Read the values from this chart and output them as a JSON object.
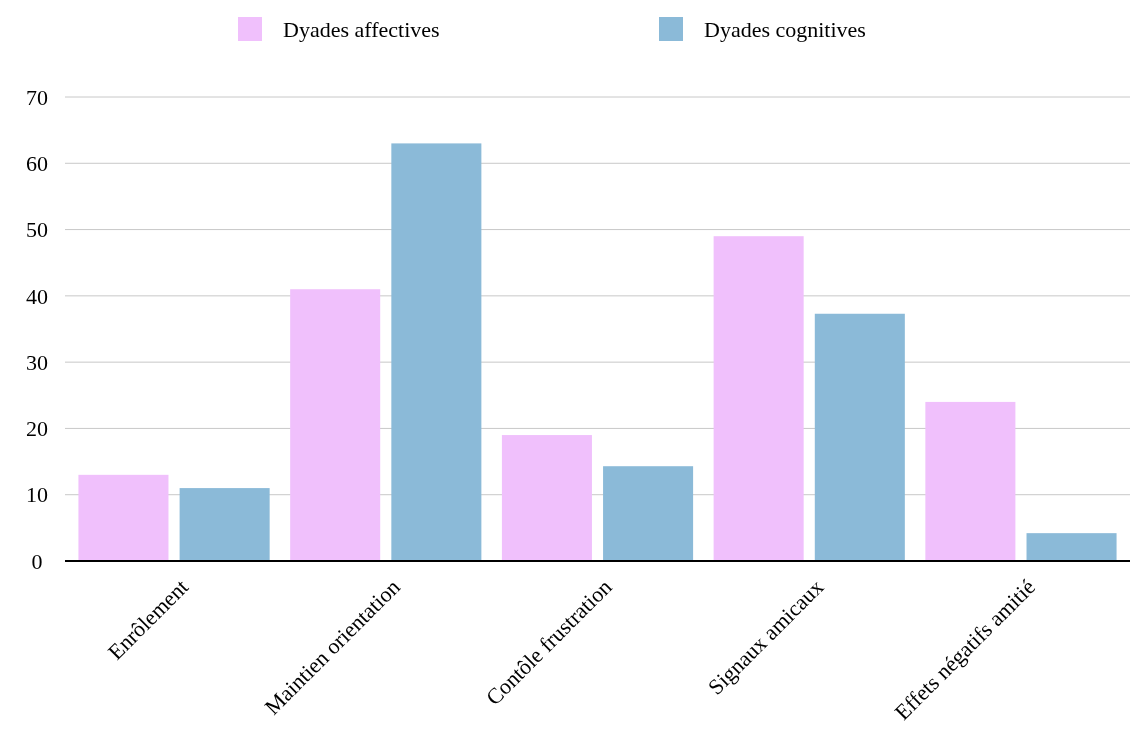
{
  "chart_data": {
    "type": "bar",
    "categories": [
      "Enrôlement",
      "Maintien orientation",
      "Contôle frustration",
      "Signaux amicaux",
      "Effets négatifs amitié"
    ],
    "series": [
      {
        "name": "Dyades affectives",
        "color": "#f0c0fc",
        "values": [
          13,
          41,
          19,
          49,
          24
        ]
      },
      {
        "name": "Dyades cognitives",
        "color": "#8bbad8",
        "values": [
          11,
          63,
          14.3,
          37.3,
          4.2
        ]
      }
    ],
    "ylim": [
      0,
      70
    ],
    "yticks": [
      0,
      10,
      20,
      30,
      40,
      50,
      60,
      70
    ],
    "grid": "y",
    "legend": "top"
  }
}
